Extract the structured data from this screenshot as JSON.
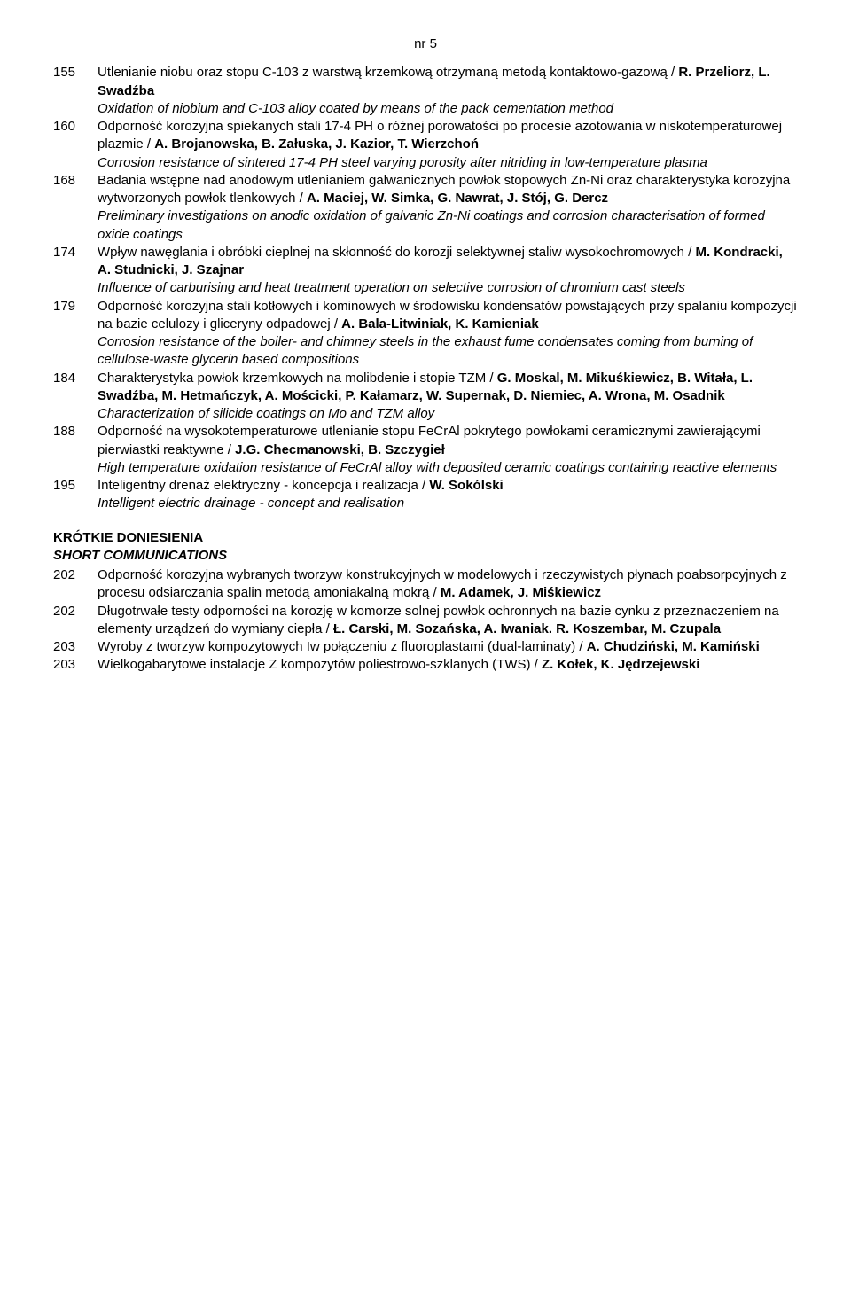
{
  "issue_label": "nr 5",
  "entries": [
    {
      "num": "155",
      "title_pl": "Utlenianie niobu oraz stopu C-103 z warstwą krzemkową otrzymaną metodą kontaktowo-gazową / ",
      "authors": "R. Przeliorz, L. Swadźba",
      "title_en": "Oxidation of niobium and C-103 alloy coated by means of the pack cementation method"
    },
    {
      "num": "160",
      "title_pl": "Odporność korozyjna spiekanych stali 17-4 PH o różnej porowatości po procesie azotowania w niskotemperaturowej plazmie / ",
      "authors": "A. Brojanowska, B. Załuska, J. Kazior, T. Wierzchoń",
      "title_en": "Corrosion resistance of sintered 17-4 PH steel varying porosity after nitriding in low-temperature plasma"
    },
    {
      "num": "168",
      "title_pl": "Badania wstępne nad anodowym utlenianiem galwanicznych powłok stopowych Zn-Ni oraz charakterystyka korozyjna wytworzonych powłok tlenkowych / ",
      "authors": "A. Maciej, W. Simka, G. Nawrat, J. Stój, G. Dercz",
      "title_en": "Preliminary investigations on anodic oxidation of galvanic Zn-Ni coatings and corrosion characterisation of formed oxide coatings"
    },
    {
      "num": "174",
      "title_pl": "Wpływ nawęglania i obróbki cieplnej na skłonność do korozji selektywnej staliw wysokochromowych / ",
      "authors": "M. Kondracki, A. Studnicki, J. Szajnar",
      "title_en": "Influence of carburising and heat treatment operation on selective corrosion of chromium cast steels"
    },
    {
      "num": "179",
      "title_pl": "Odporność korozyjna stali kotłowych i kominowych w środowisku kondensatów powstających przy spalaniu kompozycji na bazie celulozy i gliceryny odpadowej / ",
      "authors": "A. Bala-Litwiniak, K. Kamieniak",
      "title_en": "Corrosion resistance of the boiler- and chimney steels in the exhaust fume condensates coming from burning of cellulose-waste glycerin based compositions"
    },
    {
      "num": "184",
      "title_pl": "Charakterystyka powłok krzemkowych na molibdenie i stopie TZM / ",
      "authors": "G. Moskal, M. Mikuśkiewicz, B. Witała, L. Swadźba, M. Hetmańczyk, A. Mościcki, P. Kałamarz, W. Supernak, D. Niemiec, A. Wrona, M. Osadnik",
      "title_en": "Characterization of silicide coatings on Mo and TZM alloy"
    },
    {
      "num": "188",
      "title_pl": "Odporność na wysokotemperaturowe utlenianie stopu FeCrAl pokrytego powłokami ceramicznymi zawierającymi pierwiastki reaktywne / ",
      "authors": "J.G. Checmanowski, B. Szczygieł",
      "title_en": "High temperature oxidation resistance of FeCrAl alloy with deposited ceramic coatings containing reactive elements"
    },
    {
      "num": "195",
      "title_pl": "Inteligentny drenaż elektryczny - koncepcja i realizacja / ",
      "authors": "W. Sokólski",
      "title_en": "Intelligent electric drainage - concept and realisation"
    }
  ],
  "section": {
    "title_pl": "KRÓTKIE DONIESIENIA",
    "title_en": "SHORT COMMUNICATIONS"
  },
  "short_entries": [
    {
      "num": "202",
      "title_pl": "Odporność korozyjna wybranych tworzyw konstrukcyjnych w modelowych i rzeczywistych płynach poabsorpcyjnych z procesu odsiarczania spalin metodą amoniakalną mokrą / ",
      "authors": "M. Adamek, J. Miśkiewicz"
    },
    {
      "num": "202",
      "title_pl": "Długotrwałe testy odporności na korozję w komorze solnej powłok ochronnych na bazie cynku z przeznaczeniem na elementy urządzeń do wymiany ciepła / ",
      "authors": "Ł. Carski, M. Sozańska, A. Iwaniak. R. Koszembar, M. Czupala"
    },
    {
      "num": "203",
      "title_pl": "Wyroby z tworzyw kompozytowych Iw połączeniu z fluoroplastami (dual-laminaty) / ",
      "authors": "A. Chudziński, M. Kamiński"
    },
    {
      "num": "203",
      "title_pl": "Wielkogabarytowe instalacje Z kompozytów poliestrowo-szklanych (TWS) / ",
      "authors": "Z. Kołek, K. Jędrzejewski"
    }
  ]
}
